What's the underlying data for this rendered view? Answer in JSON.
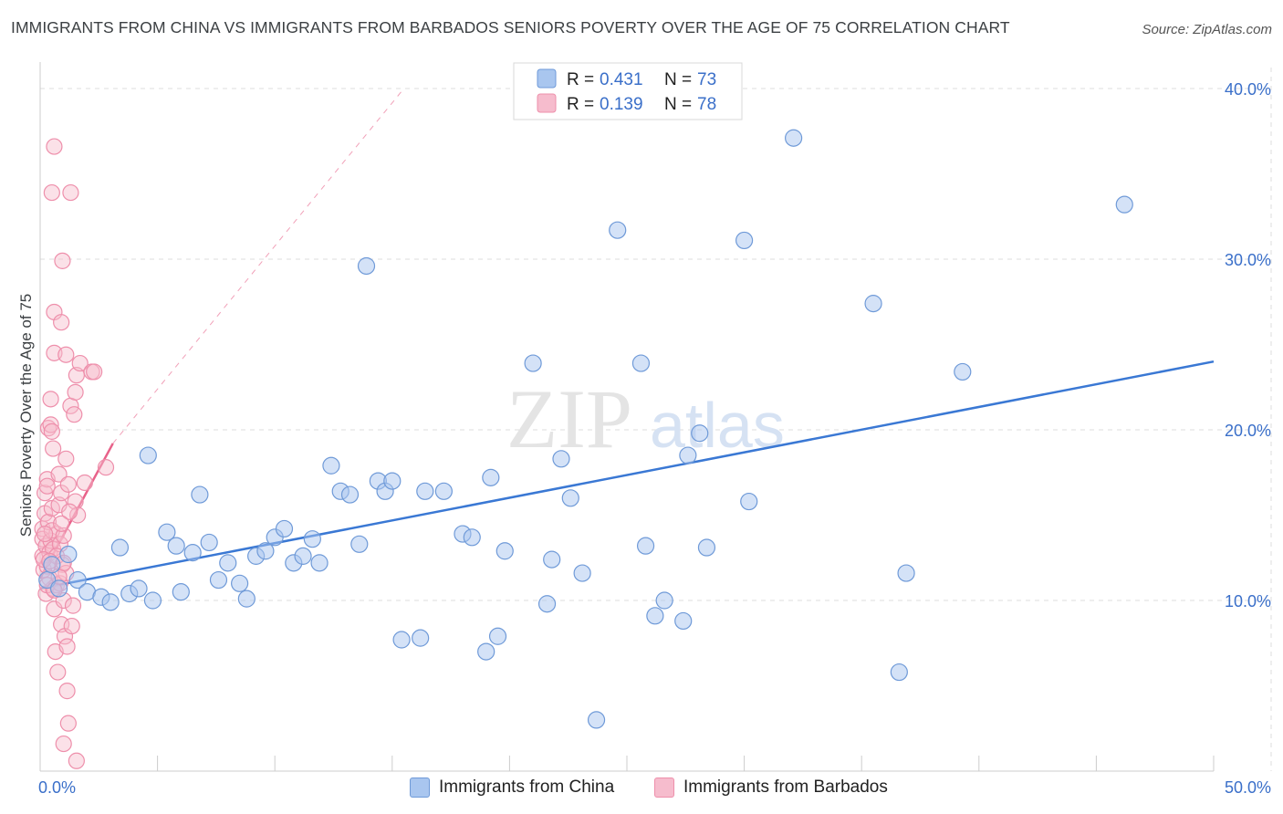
{
  "header": {
    "title": "IMMIGRANTS FROM CHINA VS IMMIGRANTS FROM BARBADOS SENIORS POVERTY OVER THE AGE OF 75 CORRELATION CHART",
    "source": "Source: ZipAtlas.com"
  },
  "watermark": {
    "zip": "ZIP",
    "atlas": "atlas"
  },
  "colors": {
    "china_fill": "#a9c6ef",
    "china_stroke": "#6f9ad8",
    "china_line": "#3a78d4",
    "barbados_fill": "#f6bccd",
    "barbados_stroke": "#ee8fab",
    "barbados_line": "#e8628a",
    "tick_text": "#3a6fc9",
    "grid": "#dddddd"
  },
  "legend": {
    "rows": [
      {
        "r_label": "R = ",
        "r_value": "0.431",
        "n_label": "N = ",
        "n_value": "73",
        "series": "china"
      },
      {
        "r_label": "R = ",
        "r_value": "0.139",
        "n_label": "N = ",
        "n_value": "78",
        "series": "barbados"
      }
    ]
  },
  "bottom_legend": {
    "china": "Immigrants from China",
    "barbados": "Immigrants from Barbados"
  },
  "chart_data": {
    "type": "scatter",
    "title": "IMMIGRANTS FROM CHINA VS IMMIGRANTS FROM BARBADOS SENIORS POVERTY OVER THE AGE OF 75 CORRELATION CHART",
    "xlabel": "",
    "ylabel": "Seniors Poverty Over the Age of 75",
    "xlim": [
      0,
      50
    ],
    "ylim": [
      0,
      40
    ],
    "x_tick_labels": [
      "0.0%",
      "50.0%"
    ],
    "y_ticks": [
      10,
      20,
      30,
      40
    ],
    "y_tick_labels": [
      "10.0%",
      "20.0%",
      "30.0%",
      "40.0%"
    ],
    "grid": true,
    "legend_position": "top-center",
    "series": [
      {
        "name": "Immigrants from China",
        "R": 0.431,
        "N": 73,
        "trend": {
          "x": [
            0,
            50
          ],
          "y": [
            10.7,
            24.0
          ],
          "style": "solid"
        },
        "points": [
          [
            0.3,
            11.2
          ],
          [
            0.5,
            12.1
          ],
          [
            0.8,
            10.7
          ],
          [
            1.2,
            12.7
          ],
          [
            1.6,
            11.2
          ],
          [
            2.0,
            10.5
          ],
          [
            2.6,
            10.2
          ],
          [
            3.0,
            9.9
          ],
          [
            3.4,
            13.1
          ],
          [
            3.8,
            10.4
          ],
          [
            4.2,
            10.7
          ],
          [
            4.8,
            10.0
          ],
          [
            4.6,
            18.5
          ],
          [
            5.4,
            14.0
          ],
          [
            5.8,
            13.2
          ],
          [
            6.0,
            10.5
          ],
          [
            6.5,
            12.8
          ],
          [
            6.8,
            16.2
          ],
          [
            7.2,
            13.4
          ],
          [
            7.6,
            11.2
          ],
          [
            8.0,
            12.2
          ],
          [
            8.5,
            11.0
          ],
          [
            8.8,
            10.1
          ],
          [
            9.2,
            12.6
          ],
          [
            9.6,
            12.9
          ],
          [
            10.0,
            13.7
          ],
          [
            10.4,
            14.2
          ],
          [
            10.8,
            12.2
          ],
          [
            11.2,
            12.6
          ],
          [
            11.6,
            13.6
          ],
          [
            11.9,
            12.2
          ],
          [
            12.4,
            17.9
          ],
          [
            12.8,
            16.4
          ],
          [
            13.2,
            16.2
          ],
          [
            13.6,
            13.3
          ],
          [
            13.9,
            29.6
          ],
          [
            14.4,
            17.0
          ],
          [
            14.7,
            16.4
          ],
          [
            15.0,
            17.0
          ],
          [
            15.4,
            7.7
          ],
          [
            16.2,
            7.8
          ],
          [
            16.4,
            16.4
          ],
          [
            17.2,
            16.4
          ],
          [
            18.0,
            13.9
          ],
          [
            18.4,
            13.7
          ],
          [
            19.0,
            7.0
          ],
          [
            19.2,
            17.2
          ],
          [
            19.5,
            7.9
          ],
          [
            19.8,
            12.9
          ],
          [
            21.0,
            23.9
          ],
          [
            21.6,
            9.8
          ],
          [
            21.8,
            12.4
          ],
          [
            22.2,
            18.3
          ],
          [
            22.6,
            16.0
          ],
          [
            23.1,
            11.6
          ],
          [
            23.7,
            3.0
          ],
          [
            24.6,
            31.7
          ],
          [
            25.6,
            23.9
          ],
          [
            25.8,
            13.2
          ],
          [
            26.2,
            9.1
          ],
          [
            26.6,
            10.0
          ],
          [
            27.4,
            8.8
          ],
          [
            27.6,
            18.5
          ],
          [
            28.1,
            19.8
          ],
          [
            28.4,
            13.1
          ],
          [
            30.0,
            31.1
          ],
          [
            30.2,
            15.8
          ],
          [
            32.1,
            37.1
          ],
          [
            35.5,
            27.4
          ],
          [
            36.6,
            5.8
          ],
          [
            36.9,
            11.6
          ],
          [
            39.3,
            23.4
          ],
          [
            46.2,
            33.2
          ]
        ]
      },
      {
        "name": "Immigrants from Barbados",
        "R": 0.139,
        "N": 78,
        "trend": {
          "x": [
            0,
            3.1
          ],
          "y": [
            11.3,
            19.2
          ],
          "style": "solid",
          "extended": {
            "x": [
              3.1,
              15.5
            ],
            "y": [
              19.2,
              40.0
            ],
            "style": "dashed"
          }
        },
        "points": [
          [
            0.1,
            14.2
          ],
          [
            0.1,
            13.6
          ],
          [
            0.1,
            12.6
          ],
          [
            0.15,
            11.8
          ],
          [
            0.2,
            16.3
          ],
          [
            0.2,
            15.1
          ],
          [
            0.25,
            13.2
          ],
          [
            0.25,
            10.4
          ],
          [
            0.3,
            17.1
          ],
          [
            0.3,
            12.0
          ],
          [
            0.35,
            20.1
          ],
          [
            0.35,
            14.6
          ],
          [
            0.4,
            12.8
          ],
          [
            0.4,
            11.3
          ],
          [
            0.45,
            20.3
          ],
          [
            0.45,
            13.5
          ],
          [
            0.45,
            21.8
          ],
          [
            0.5,
            33.9
          ],
          [
            0.5,
            19.9
          ],
          [
            0.5,
            15.4
          ],
          [
            0.55,
            13.0
          ],
          [
            0.55,
            10.7
          ],
          [
            0.6,
            36.6
          ],
          [
            0.6,
            24.5
          ],
          [
            0.6,
            26.9
          ],
          [
            0.6,
            9.5
          ],
          [
            0.65,
            7.0
          ],
          [
            0.7,
            13.9
          ],
          [
            0.7,
            10.9
          ],
          [
            0.75,
            5.8
          ],
          [
            0.8,
            15.6
          ],
          [
            0.8,
            17.4
          ],
          [
            0.85,
            13.3
          ],
          [
            0.9,
            26.3
          ],
          [
            0.9,
            16.3
          ],
          [
            0.9,
            8.6
          ],
          [
            0.95,
            29.9
          ],
          [
            0.95,
            12.1
          ],
          [
            1.0,
            1.6
          ],
          [
            1.0,
            10.0
          ],
          [
            1.05,
            7.9
          ],
          [
            1.1,
            18.3
          ],
          [
            1.1,
            24.4
          ],
          [
            1.15,
            7.3
          ],
          [
            1.15,
            4.7
          ],
          [
            1.2,
            2.8
          ],
          [
            1.2,
            16.8
          ],
          [
            1.3,
            33.9
          ],
          [
            1.3,
            21.4
          ],
          [
            1.35,
            8.5
          ],
          [
            1.4,
            9.7
          ],
          [
            1.45,
            20.9
          ],
          [
            1.5,
            22.2
          ],
          [
            1.5,
            15.8
          ],
          [
            1.55,
            0.6
          ],
          [
            1.55,
            23.2
          ],
          [
            1.6,
            15.0
          ],
          [
            1.7,
            23.9
          ],
          [
            1.9,
            16.9
          ],
          [
            2.2,
            23.4
          ],
          [
            2.3,
            23.4
          ],
          [
            2.8,
            17.8
          ],
          [
            0.15,
            12.4
          ],
          [
            0.3,
            10.9
          ],
          [
            0.5,
            14.1
          ],
          [
            0.7,
            12.6
          ],
          [
            0.85,
            11.0
          ],
          [
            1.0,
            13.8
          ],
          [
            1.1,
            11.6
          ],
          [
            1.25,
            15.2
          ],
          [
            0.2,
            13.9
          ],
          [
            0.4,
            12.3
          ],
          [
            0.6,
            10.6
          ],
          [
            0.8,
            11.4
          ],
          [
            1.0,
            12.2
          ],
          [
            0.3,
            16.7
          ],
          [
            0.55,
            18.9
          ],
          [
            0.9,
            14.5
          ]
        ]
      }
    ]
  }
}
